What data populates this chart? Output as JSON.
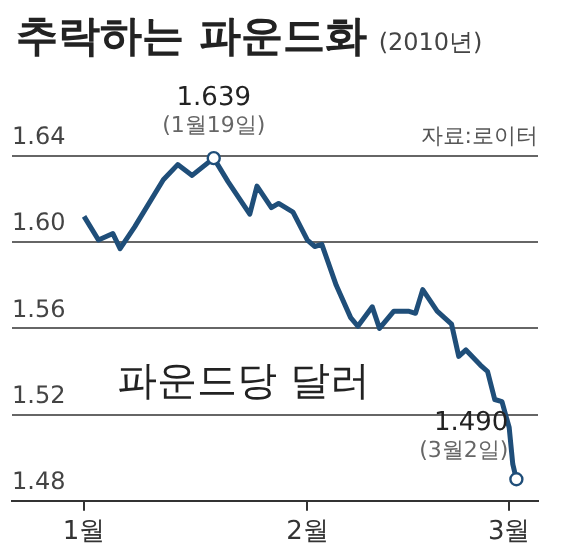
{
  "chart_data": {
    "type": "line",
    "title": "추락하는 파운드화",
    "subtitle": "(2010년)",
    "x": [
      "2010-01-01",
      "2010-01-03",
      "2010-01-05",
      "2010-01-06",
      "2010-01-08",
      "2010-01-12",
      "2010-01-14",
      "2010-01-16",
      "2010-01-19",
      "2010-01-21",
      "2010-01-24",
      "2010-01-25",
      "2010-01-27",
      "2010-01-28",
      "2010-01-30",
      "2010-02-01",
      "2010-02-02",
      "2010-02-03",
      "2010-02-05",
      "2010-02-07",
      "2010-02-08",
      "2010-02-10",
      "2010-02-11",
      "2010-02-13",
      "2010-02-15",
      "2010-02-16",
      "2010-02-17",
      "2010-02-19",
      "2010-02-21",
      "2010-02-22",
      "2010-02-23",
      "2010-02-25",
      "2010-02-26",
      "2010-02-27",
      "2010-02-28",
      "2010-03-01",
      "2010-03-01T12:00",
      "2010-03-02"
    ],
    "series": [
      {
        "name": "파운드당 달러",
        "color": "#1f4e79",
        "values": [
          1.612,
          1.601,
          1.604,
          1.597,
          1.607,
          1.629,
          1.636,
          1.631,
          1.639,
          1.628,
          1.613,
          1.626,
          1.616,
          1.618,
          1.614,
          1.601,
          1.598,
          1.599,
          1.58,
          1.565,
          1.561,
          1.57,
          1.56,
          1.568,
          1.568,
          1.567,
          1.578,
          1.568,
          1.562,
          1.547,
          1.55,
          1.543,
          1.54,
          1.527,
          1.526,
          1.514,
          1.497,
          1.49
        ]
      }
    ],
    "xlim": [
      "2009-12-22",
      "2010-03-05"
    ],
    "xticks": [
      {
        "value": "2010-01-01",
        "label": "1월"
      },
      {
        "value": "2010-02-01",
        "label": "2월"
      },
      {
        "value": "2010-03-01",
        "label": "3월"
      }
    ],
    "ylim": [
      1.48,
      1.64
    ],
    "yticks": [
      1.48,
      1.52,
      1.56,
      {
        "value": 1.6,
        "label": "1.60"
      },
      1.64
    ],
    "grid": "y",
    "legend": false,
    "marker": "none",
    "line_style": "solid",
    "annotations": [
      {
        "text": "1.639\n(1월19일)",
        "x": "2010-01-19",
        "y": 1.639
      },
      {
        "text": "1.490\n(3월2일)",
        "x": "2010-03-02",
        "y": 1.49
      },
      "자료:로이터"
    ]
  }
}
